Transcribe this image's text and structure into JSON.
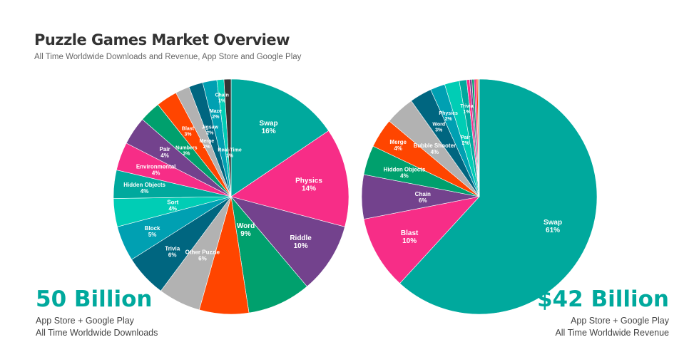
{
  "header": {
    "title": "Puzzle Games Market Overview",
    "subtitle": "All Time Worldwide Downloads and Revenue, App Store and Google Play"
  },
  "downloads": {
    "total": "50 Billion",
    "line1": "App Store + Google Play",
    "line2": "All Time Worldwide Downloads"
  },
  "revenue": {
    "total": "$42 Billion",
    "line1": "App Store + Google Play",
    "line2": "All Time Worldwide Revenue"
  },
  "colors": {
    "teal": "#00a99d",
    "pink": "#f72d87",
    "purple": "#73428d",
    "green": "#00a06d",
    "orange": "#ff4500",
    "grey": "#b2b2b2",
    "darkteal": "#006680",
    "blue": "#00a0b2",
    "turquoise": "#00cdb5",
    "dark": "#333333"
  },
  "chart_data": [
    {
      "type": "pie",
      "title": "Downloads",
      "start": "12 o'clock",
      "direction": "clockwise",
      "slices": [
        {
          "label": "Swap",
          "value": 16,
          "color": "#00a99d"
        },
        {
          "label": "Physics",
          "value": 14,
          "color": "#f72d87"
        },
        {
          "label": "Riddle",
          "value": 10,
          "color": "#73428d"
        },
        {
          "label": "Word",
          "value": 9,
          "color": "#00a06d"
        },
        {
          "label": "",
          "value": 7,
          "color": "#ff4500"
        },
        {
          "label": "Other Puzzle",
          "value": 6,
          "color": "#b2b2b2"
        },
        {
          "label": "Trivia",
          "value": 6,
          "color": "#006680"
        },
        {
          "label": "Block",
          "value": 5,
          "color": "#00a0b2"
        },
        {
          "label": "Sort",
          "value": 4,
          "color": "#00cdb5"
        },
        {
          "label": "Hidden Objects",
          "value": 4,
          "color": "#00a99d"
        },
        {
          "label": "Environmental",
          "value": 4,
          "color": "#f72d87"
        },
        {
          "label": "Pair",
          "value": 4,
          "color": "#73428d"
        },
        {
          "label": "Numbers",
          "value": 3,
          "color": "#00a06d"
        },
        {
          "label": "Blast",
          "value": 3,
          "color": "#ff4500"
        },
        {
          "label": "Merge",
          "value": 2,
          "color": "#b2b2b2"
        },
        {
          "label": "Jigsaw",
          "value": 2,
          "color": "#006680"
        },
        {
          "label": "Maze",
          "value": 2,
          "color": "#00a0b2"
        },
        {
          "label": "Chain",
          "value": 1,
          "color": "#00cdb5"
        },
        {
          "label": "Real-Time",
          "value": 1,
          "color": "#333333"
        }
      ]
    },
    {
      "type": "pie",
      "title": "Revenue",
      "start": "12 o'clock",
      "direction": "clockwise",
      "slices": [
        {
          "label": "Swap",
          "value": 61,
          "color": "#00a99d"
        },
        {
          "label": "Blast",
          "value": 10,
          "color": "#f72d87"
        },
        {
          "label": "Chain",
          "value": 6,
          "color": "#73428d"
        },
        {
          "label": "Hidden Objects",
          "value": 4,
          "color": "#00a06d"
        },
        {
          "label": "Merge",
          "value": 4,
          "color": "#ff4500"
        },
        {
          "label": "Bubble Shooter",
          "value": 4,
          "color": "#b2b2b2"
        },
        {
          "label": "Word",
          "value": 3,
          "color": "#006680"
        },
        {
          "label": "Physics",
          "value": 2,
          "color": "#00a0b2"
        },
        {
          "label": "Pair",
          "value": 2,
          "color": "#00cdb5"
        },
        {
          "label": "Trivia",
          "value": 1,
          "color": "#00a99d"
        },
        {
          "label": "",
          "value": 0.4,
          "color": "#f72d87"
        },
        {
          "label": "",
          "value": 0.3,
          "color": "#73428d"
        },
        {
          "label": "",
          "value": 0.3,
          "color": "#00a06d"
        },
        {
          "label": "",
          "value": 0.3,
          "color": "#f72d87"
        },
        {
          "label": "",
          "value": 0.2,
          "color": "#ff4500"
        },
        {
          "label": "",
          "value": 0.2,
          "color": "#b2b2b2"
        }
      ]
    }
  ]
}
